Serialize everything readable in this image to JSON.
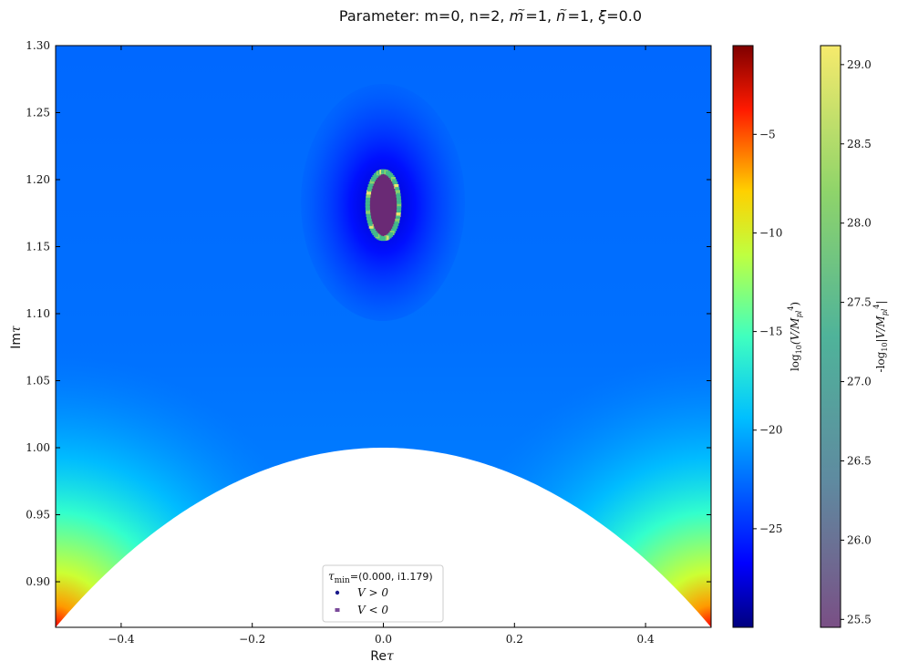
{
  "chart_data": {
    "type": "heatmap",
    "title": "Parameter: m=0, n=2, m̃=1, ñ=1, ξ=0.0",
    "xlabel": "Reτ",
    "ylabel": "Imτ",
    "xlim": [
      -0.5,
      0.5
    ],
    "ylim": [
      0.866,
      1.3
    ],
    "x_ticks": [
      -0.4,
      -0.2,
      0.0,
      0.2,
      0.4
    ],
    "x_tick_labels": [
      "−0.4",
      "−0.2",
      "0.0",
      "0.2",
      "0.4"
    ],
    "y_ticks": [
      0.9,
      0.95,
      1.0,
      1.05,
      1.1,
      1.15,
      1.2,
      1.25,
      1.3
    ],
    "y_tick_labels": [
      "0.90",
      "0.95",
      "1.00",
      "1.05",
      "1.10",
      "1.15",
      "1.20",
      "1.25",
      "1.30"
    ],
    "fundamental_domain_boundary": "|τ| = 1 (region below arc excluded, shown white)",
    "heatmap": {
      "quantity": "log10(V/M_pl^4)",
      "colormap": "jet",
      "range": [
        -30,
        -0.5
      ],
      "features": [
        {
          "description": "minimum well around τ_min",
          "center": [
            0.0,
            1.18
          ],
          "value": -29
        },
        {
          "description": "high values at lower corners",
          "points": [
            [
              -0.5,
              0.866
            ],
            [
              0.5,
              0.866
            ]
          ],
          "value": -1
        }
      ]
    },
    "colorbars": [
      {
        "label": "log10(V/M_pl^4)",
        "colormap": "jet",
        "ticks": [
          -25,
          -20,
          -15,
          -10,
          -5
        ],
        "tick_labels": [
          "−25",
          "−20",
          "−15",
          "−10",
          "−5"
        ],
        "range": [
          -30,
          -0.5
        ]
      },
      {
        "label": "-log10|V/M_pl^4|",
        "colormap": "viridis (alpha)",
        "ticks": [
          25.5,
          26.0,
          26.5,
          27.0,
          27.5,
          28.0,
          28.5,
          29.0
        ],
        "tick_labels": [
          "25.5",
          "26.0",
          "26.5",
          "27.0",
          "27.5",
          "28.0",
          "28.5",
          "29.0"
        ],
        "range": [
          25.45,
          29.12
        ]
      }
    ],
    "scatter": {
      "description": "ring of points around minimum",
      "center": [
        0.0,
        1.181
      ],
      "semi_axis_re": 0.024,
      "semi_axis_im": 0.025
    },
    "legend": {
      "position": "bottom-center",
      "title": "τmin=(0.000, i1.179)",
      "entries": [
        {
          "label": "V > 0",
          "marker": "circle",
          "color": "#1a1a8c"
        },
        {
          "label": "V < 0",
          "marker": "square",
          "color": "#7a4a9a"
        }
      ]
    }
  },
  "text": {
    "title_prefix": "Parameter: m=0, n=2, ",
    "title_mt": "m",
    "title_eq1": "=1, ",
    "title_nt": "n",
    "title_eq2": "=1, ",
    "title_xi": "ξ",
    "title_eq3": "=0.0",
    "xlabel_main": "Re",
    "xlabel_sym": "τ",
    "ylabel_main": "Im",
    "ylabel_sym": "τ",
    "cb1_label_a": "log",
    "cb1_label_sub": "10",
    "cb1_label_b": "(V/M",
    "cb1_label_sub2": "pl",
    "cb1_label_sup": "4",
    "cb1_label_c": ")",
    "cb2_label_a": "-log",
    "cb2_label_sub": "10",
    "cb2_label_b": "|V/M",
    "cb2_label_sub2": "pl",
    "cb2_label_sup": "4",
    "cb2_label_c": "|",
    "legend_tau": "τ",
    "legend_min": "min",
    "legend_val": "=(0.000, i1.179)",
    "legend_pos": "V > 0",
    "legend_neg": "V < 0"
  },
  "colors": {
    "jet": [
      "#00007f",
      "#0000ff",
      "#007fff",
      "#00ffff",
      "#7fff7f",
      "#ffff00",
      "#ff7f00",
      "#ff0000",
      "#7f0000"
    ],
    "viridis_alpha": [
      "#7a4f85",
      "#4b9c9c",
      "#44b98a",
      "#8fd46a",
      "#f6ea6c"
    ],
    "marker_pos": "#1a1a8c",
    "marker_neg": "#7a4a9a"
  }
}
